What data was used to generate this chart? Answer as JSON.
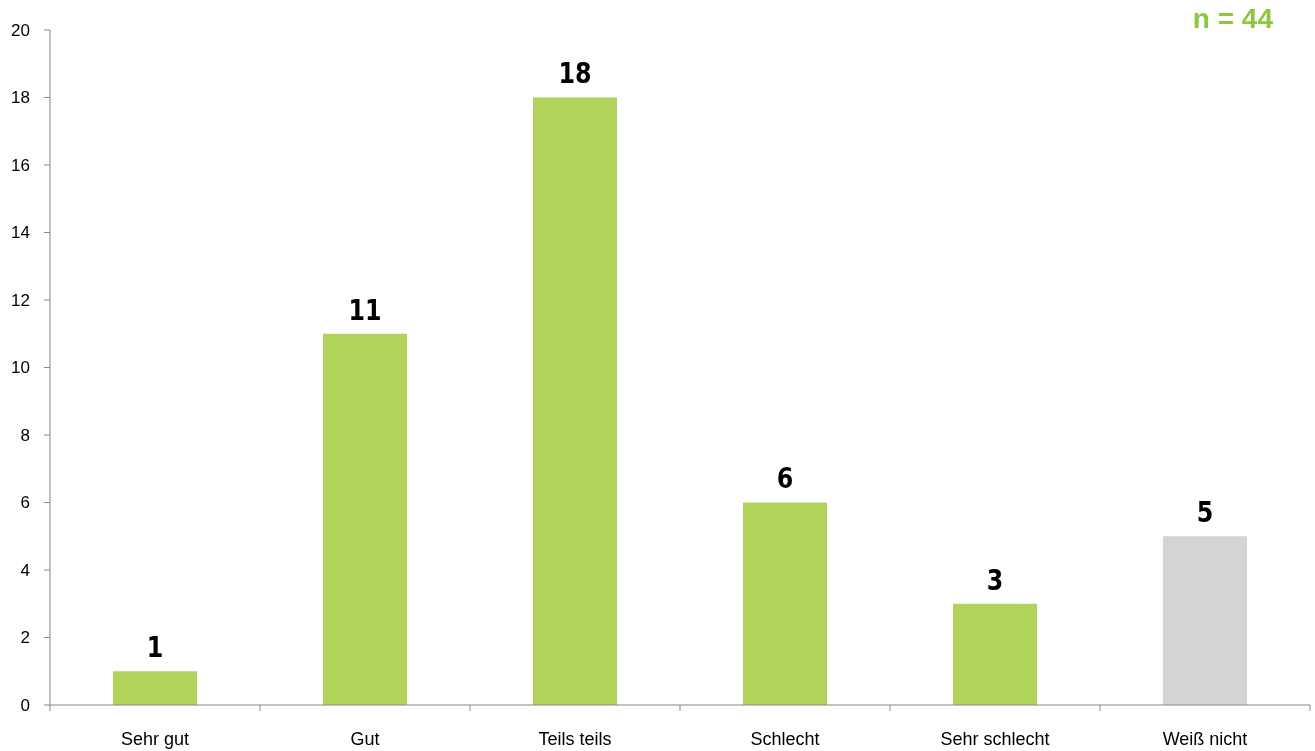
{
  "chart_data": {
    "type": "bar",
    "categories": [
      "Sehr gut",
      "Gut",
      "Teils teils",
      "Schlecht",
      "Sehr schlecht",
      "Weiß nicht"
    ],
    "values": [
      1,
      11,
      18,
      6,
      3,
      5
    ],
    "colors": [
      "#b2d35b",
      "#b2d35b",
      "#b2d35b",
      "#b2d35b",
      "#b2d35b",
      "#d4d4d4"
    ],
    "ylim": [
      0,
      20
    ],
    "yticks": [
      0,
      2,
      4,
      6,
      8,
      10,
      12,
      14,
      16,
      18,
      20
    ],
    "data_labels": true,
    "annotations": [
      "n = 44"
    ]
  }
}
